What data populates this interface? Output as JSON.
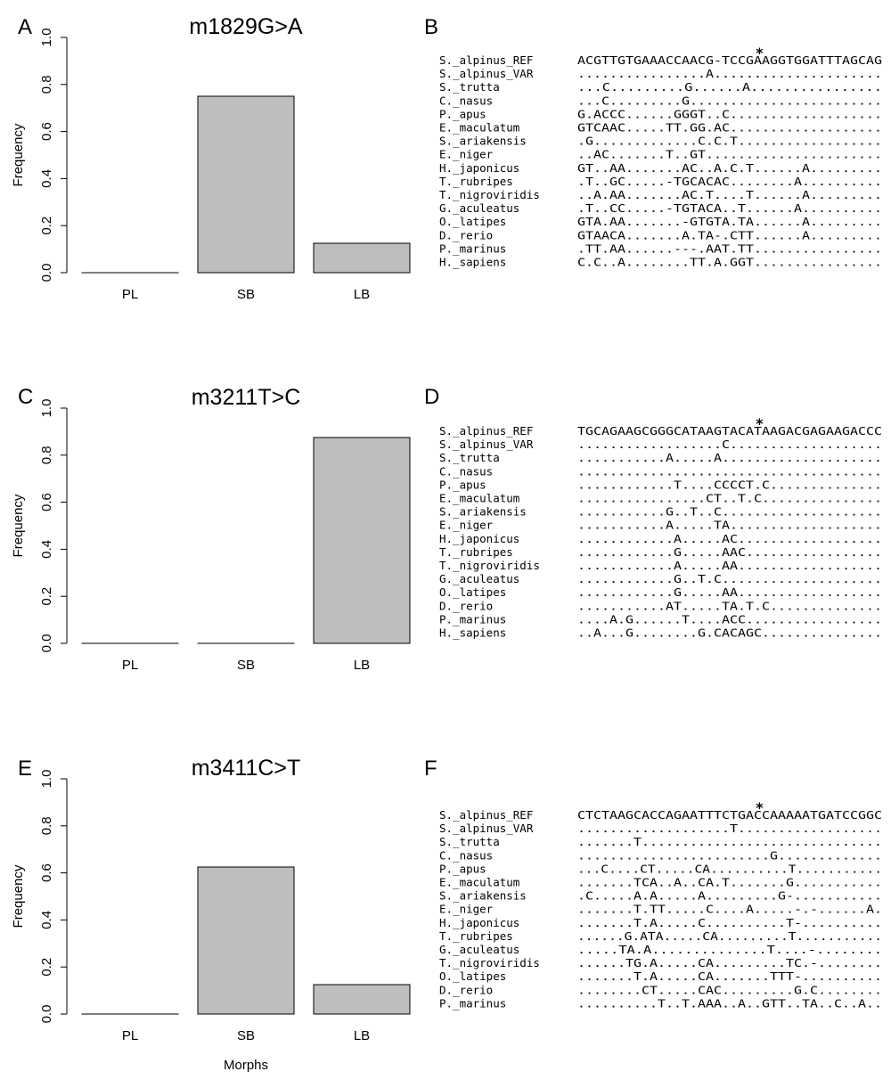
{
  "chart_data": [
    {
      "type": "bar",
      "panel": "A",
      "title": "m1829G>A",
      "categories": [
        "PL",
        "SB",
        "LB"
      ],
      "values": [
        0.0,
        0.75,
        0.125
      ],
      "ylabel": "Frequency",
      "xlabel": "",
      "ylim": [
        0,
        1
      ],
      "yticks": [
        "0.0",
        "0.2",
        "0.4",
        "0.6",
        "0.8",
        "1.0"
      ],
      "bar_color": "#bebebe"
    },
    {
      "type": "bar",
      "panel": "C",
      "title": "m3211T>C",
      "categories": [
        "PL",
        "SB",
        "LB"
      ],
      "values": [
        0.0,
        0.0,
        0.875
      ],
      "ylabel": "Frequency",
      "xlabel": "",
      "ylim": [
        0,
        1
      ],
      "yticks": [
        "0.0",
        "0.2",
        "0.4",
        "0.6",
        "0.8",
        "1.0"
      ],
      "bar_color": "#bebebe"
    },
    {
      "type": "bar",
      "panel": "E",
      "title": "m3411C>T",
      "categories": [
        "PL",
        "SB",
        "LB"
      ],
      "values": [
        0.0,
        0.625,
        0.125
      ],
      "ylabel": "Frequency",
      "xlabel": "Morphs",
      "ylim": [
        0,
        1
      ],
      "yticks": [
        "0.0",
        "0.2",
        "0.4",
        "0.6",
        "0.8",
        "1.0"
      ],
      "bar_color": "#bebebe"
    }
  ],
  "alignments": [
    {
      "panel": "B",
      "marker": "*",
      "marker_col": 23,
      "rows": [
        {
          "name": "S._alpinus_REF",
          "seq": "ACGTTGTGAAACCAACG-TCCGAAGGTGGATTTAGCAG"
        },
        {
          "name": "S._alpinus_VAR",
          "seq": "................A....................."
        },
        {
          "name": "S._trutta",
          "seq": "...C.........G......A................"
        },
        {
          "name": "C._nasus",
          "seq": "...C.........G........................"
        },
        {
          "name": "P._apus",
          "seq": "G.ACCC......GGGT..C..................."
        },
        {
          "name": "E._maculatum",
          "seq": "GTCAAC.....TT.GG.AC..................."
        },
        {
          "name": "S._ariakensis",
          "seq": ".G.............C.C.T.................."
        },
        {
          "name": "E._niger",
          "seq": "..AC.......T..GT......................"
        },
        {
          "name": "H._japonicus",
          "seq": "GT..AA.......AC..A.C.T......A........."
        },
        {
          "name": "T._rubripes",
          "seq": ".T..GC.....-TGCACAC........A.........."
        },
        {
          "name": "T._nigroviridis",
          "seq": "..A.AA.......AC.T....T......A........."
        },
        {
          "name": "G._aculeatus",
          "seq": ".T..CC.....-TGTACA..T......A.........."
        },
        {
          "name": "O._latipes",
          "seq": "GTA.AA.......-GTGTA.TA......A........."
        },
        {
          "name": "D._rerio",
          "seq": "GTAACA.......A.TA-.CTT......A........."
        },
        {
          "name": "P._marinus",
          "seq": ".TT.AA......---.AAT.TT................"
        },
        {
          "name": "H._sapiens",
          "seq": "C.C..A........TT.A.GGT................"
        }
      ]
    },
    {
      "panel": "D",
      "marker": "*",
      "marker_col": 23,
      "rows": [
        {
          "name": "S._alpinus_REF",
          "seq": "TGCAGAAGCGGGCATAAGTACATAAGACGAGAAGACCC"
        },
        {
          "name": "S._alpinus_VAR",
          "seq": "..................C..................."
        },
        {
          "name": "S._trutta",
          "seq": "...........A.....A...................."
        },
        {
          "name": "C._nasus",
          "seq": "......................................"
        },
        {
          "name": "P._apus",
          "seq": "............T....CCCCT.C.............."
        },
        {
          "name": "E._maculatum",
          "seq": "................CT..T.C..............."
        },
        {
          "name": "S._ariakensis",
          "seq": "...........G..T..C...................."
        },
        {
          "name": "E._niger",
          "seq": "...........A.....TA..................."
        },
        {
          "name": "H._japonicus",
          "seq": "............A.....AC.................."
        },
        {
          "name": "T._rubripes",
          "seq": "............G.....AAC................."
        },
        {
          "name": "T._nigroviridis",
          "seq": "............A.....AA.................."
        },
        {
          "name": "G._aculeatus",
          "seq": "............G..T.C...................."
        },
        {
          "name": "O._latipes",
          "seq": "............G.....AA.................."
        },
        {
          "name": "D._rerio",
          "seq": "...........AT.....TA.T.C.............."
        },
        {
          "name": "P._marinus",
          "seq": "....A.G......T....ACC................."
        },
        {
          "name": "H._sapiens",
          "seq": "..A...G........G.CACAGC..............."
        }
      ]
    },
    {
      "panel": "F",
      "marker": "*",
      "marker_col": 23,
      "rows": [
        {
          "name": "S._alpinus_REF",
          "seq": "CTCTAAGCACCAGAATTTCTGACCAAAAATGATCCGGC"
        },
        {
          "name": "S._alpinus_VAR",
          "seq": "...................T.................."
        },
        {
          "name": "S._trutta",
          "seq": ".......T.............................."
        },
        {
          "name": "C._nasus",
          "seq": "........................G............."
        },
        {
          "name": "P._apus",
          "seq": "...C....CT.....CA..........T..........."
        },
        {
          "name": "E._maculatum",
          "seq": ".......TCA..A..CA.T.......G..........."
        },
        {
          "name": "S._ariakensis",
          "seq": ".C.....A.A.....A.........G-..........."
        },
        {
          "name": "E._niger",
          "seq": ".......T.TT.....C....A.....-.-......A."
        },
        {
          "name": "H._japonicus",
          "seq": ".......T.A.....C..........T-.........."
        },
        {
          "name": "T._rubripes",
          "seq": "......G.ATA.....CA.........T..........."
        },
        {
          "name": "G._aculeatus",
          "seq": ".....TA.A..............T....-........"
        },
        {
          "name": "T._nigroviridis",
          "seq": "......TG.A.....CA.........TC.-........"
        },
        {
          "name": "O._latipes",
          "seq": ".......T.A.....CA.......TTT-.........."
        },
        {
          "name": "D._rerio",
          "seq": "........CT.....CAC.........G.C........"
        },
        {
          "name": "P._marinus",
          "seq": "..........T..T.AAA..A..GTT..TA..C..A.."
        }
      ]
    }
  ]
}
